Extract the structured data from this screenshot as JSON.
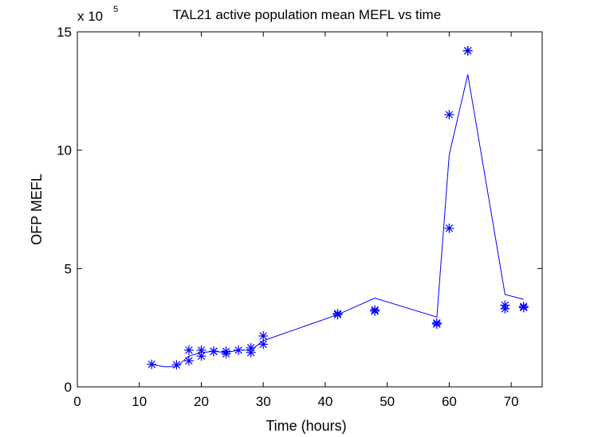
{
  "chart_data": {
    "type": "scatter",
    "title": "TAL21 active population mean MEFL vs time",
    "xlabel": "Time (hours)",
    "ylabel": "OFP MEFL",
    "y_exponent_label": "x 10",
    "y_exponent_power": "5",
    "xlim": [
      0,
      75
    ],
    "ylim": [
      0,
      15
    ],
    "xticks": [
      0,
      10,
      20,
      30,
      40,
      50,
      60,
      70
    ],
    "yticks": [
      0,
      5,
      10,
      15
    ],
    "grid": false,
    "legend": "none",
    "series": [
      {
        "marker": "asterisk",
        "color": "#0000ff",
        "points": [
          [
            12,
            0.95
          ],
          [
            16,
            0.93
          ],
          [
            18,
            1.1
          ],
          [
            18,
            1.55
          ],
          [
            20,
            1.3
          ],
          [
            20,
            1.55
          ],
          [
            22,
            1.5
          ],
          [
            22,
            1.5
          ],
          [
            24,
            1.4
          ],
          [
            24,
            1.5
          ],
          [
            26,
            1.55
          ],
          [
            28,
            1.45
          ],
          [
            28,
            1.65
          ],
          [
            30,
            1.8
          ],
          [
            30,
            2.15
          ],
          [
            42,
            3.05
          ],
          [
            42,
            3.1
          ],
          [
            48,
            3.2
          ],
          [
            48,
            3.25
          ],
          [
            58,
            2.65
          ],
          [
            58,
            2.7
          ],
          [
            60,
            6.7
          ],
          [
            60,
            11.5
          ],
          [
            63,
            14.2
          ],
          [
            63,
            14.2
          ],
          [
            69,
            3.3
          ],
          [
            69,
            3.45
          ],
          [
            72,
            3.35
          ],
          [
            72,
            3.4
          ]
        ]
      },
      {
        "type": "line",
        "color": "#0000ff",
        "x": [
          12,
          14,
          16,
          18,
          20,
          22,
          24,
          26,
          28,
          30,
          42,
          48,
          58,
          60,
          63,
          69,
          72
        ],
        "y": [
          0.95,
          0.85,
          0.85,
          1.3,
          1.45,
          1.5,
          1.45,
          1.55,
          1.55,
          1.95,
          3.05,
          3.75,
          2.95,
          9.8,
          13.2,
          3.9,
          3.7
        ]
      }
    ]
  }
}
